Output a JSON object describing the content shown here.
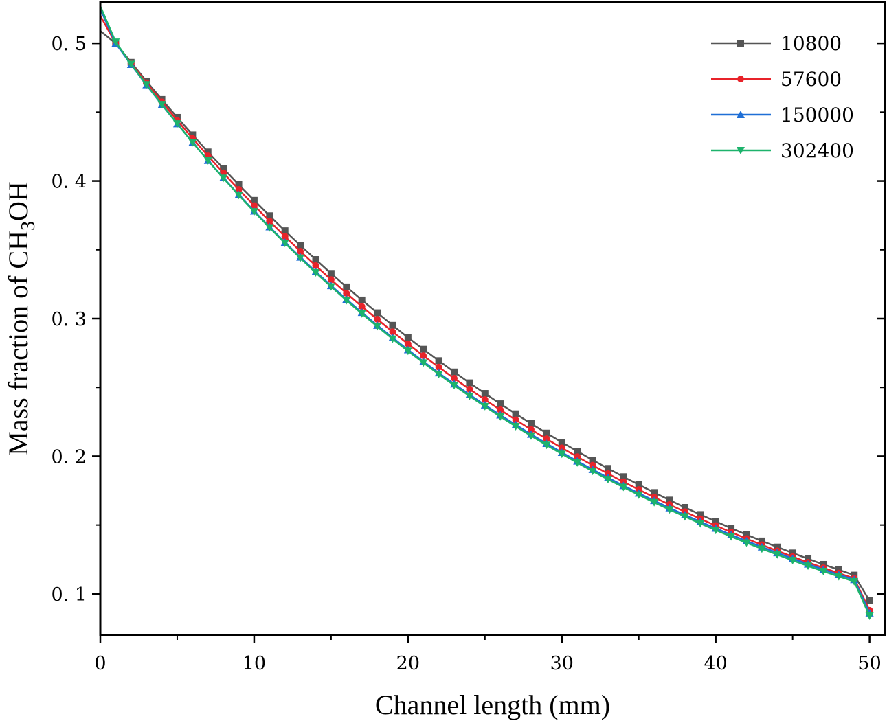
{
  "chart_data": {
    "type": "line",
    "title": "",
    "xlabel": "Channel length (mm)",
    "ylabel": {
      "main": "Mass fraction of CH",
      "sub": "3",
      "tail": "OH"
    },
    "xlim": [
      0,
      51
    ],
    "ylim": [
      0.07,
      0.53
    ],
    "xticks": [
      0,
      10,
      20,
      30,
      40,
      50
    ],
    "xtick_labels": [
      "0",
      "10",
      "20",
      "30",
      "40",
      "50"
    ],
    "yticks": [
      0.1,
      0.2,
      0.3,
      0.4,
      0.5
    ],
    "ytick_labels": [
      "0. 1",
      "0. 2",
      "0. 3",
      "0. 4",
      "0. 5"
    ],
    "grid": false,
    "legend_position": "top-right",
    "x": [
      0,
      1,
      2,
      3,
      4,
      5,
      6,
      7,
      8,
      9,
      10,
      11,
      12,
      13,
      14,
      15,
      16,
      17,
      18,
      19,
      20,
      21,
      22,
      23,
      24,
      25,
      26,
      27,
      28,
      29,
      30,
      31,
      32,
      33,
      34,
      35,
      36,
      37,
      38,
      39,
      40,
      41,
      42,
      43,
      44,
      45,
      46,
      47,
      48,
      49,
      50
    ],
    "series": [
      {
        "name": "10800",
        "color": "#555555",
        "marker": "square",
        "values": [
          0.509,
          0.5,
          0.4862,
          0.4725,
          0.4592,
          0.4462,
          0.4335,
          0.4211,
          0.4091,
          0.3973,
          0.3859,
          0.3747,
          0.3638,
          0.3532,
          0.3429,
          0.3328,
          0.323,
          0.3135,
          0.3042,
          0.2951,
          0.2863,
          0.2777,
          0.2694,
          0.2612,
          0.2533,
          0.2456,
          0.2381,
          0.2308,
          0.2237,
          0.2168,
          0.2101,
          0.2036,
          0.1972,
          0.1911,
          0.1851,
          0.1793,
          0.1736,
          0.1681,
          0.1628,
          0.1576,
          0.1526,
          0.1477,
          0.143,
          0.1384,
          0.134,
          0.1297,
          0.1255,
          0.1214,
          0.1175,
          0.1136,
          0.095
        ]
      },
      {
        "name": "57600",
        "color": "#e8232a",
        "marker": "circle",
        "values": [
          0.52,
          0.5,
          0.4855,
          0.4713,
          0.4575,
          0.444,
          0.4309,
          0.4182,
          0.4059,
          0.3938,
          0.3821,
          0.3708,
          0.3597,
          0.3489,
          0.3385,
          0.3283,
          0.3184,
          0.3088,
          0.2995,
          0.2904,
          0.2816,
          0.273,
          0.2647,
          0.2566,
          0.2487,
          0.2411,
          0.2337,
          0.2264,
          0.2194,
          0.2126,
          0.206,
          0.1996,
          0.1934,
          0.1873,
          0.1814,
          0.1757,
          0.1702,
          0.1648,
          0.1596,
          0.1545,
          0.1496,
          0.1448,
          0.1401,
          0.1356,
          0.1312,
          0.127,
          0.1229,
          0.1189,
          0.115,
          0.1112,
          0.088
        ]
      },
      {
        "name": "150000",
        "color": "#1f6fd6",
        "marker": "triangle-up",
        "values": [
          0.525,
          0.5,
          0.4846,
          0.4698,
          0.4554,
          0.4415,
          0.428,
          0.4149,
          0.4023,
          0.39,
          0.3781,
          0.3666,
          0.3554,
          0.3446,
          0.3341,
          0.3239,
          0.314,
          0.3044,
          0.2951,
          0.2861,
          0.2773,
          0.2688,
          0.2605,
          0.2525,
          0.2447,
          0.2372,
          0.2299,
          0.2228,
          0.2159,
          0.2092,
          0.2027,
          0.1964,
          0.1903,
          0.1844,
          0.1786,
          0.1731,
          0.1677,
          0.1624,
          0.1573,
          0.1524,
          0.1476,
          0.1429,
          0.1384,
          0.134,
          0.1298,
          0.1256,
          0.1216,
          0.1177,
          0.1139,
          0.1103,
          0.086
        ]
      },
      {
        "name": "302400",
        "color": "#1db36c",
        "marker": "triangle-down",
        "values": [
          0.527,
          0.501,
          0.4849,
          0.47,
          0.4556,
          0.4416,
          0.428,
          0.4148,
          0.4021,
          0.3897,
          0.3777,
          0.3661,
          0.3549,
          0.344,
          0.3334,
          0.3232,
          0.3132,
          0.3036,
          0.2943,
          0.2852,
          0.2764,
          0.2679,
          0.2596,
          0.2515,
          0.2437,
          0.2362,
          0.2288,
          0.2217,
          0.2148,
          0.2081,
          0.2016,
          0.1953,
          0.1892,
          0.1832,
          0.1775,
          0.1719,
          0.1664,
          0.1612,
          0.1561,
          0.1511,
          0.1463,
          0.1416,
          0.1371,
          0.1327,
          0.1285,
          0.1243,
          0.1203,
          0.1164,
          0.1126,
          0.109,
          0.084
        ]
      }
    ]
  }
}
